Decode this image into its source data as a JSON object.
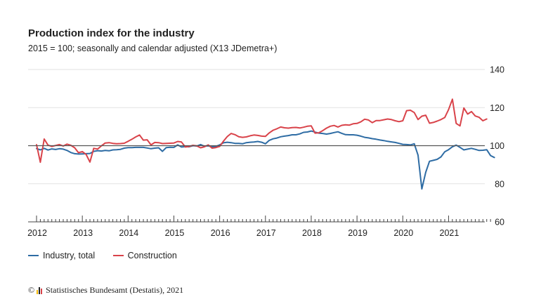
{
  "chart_data": {
    "type": "line",
    "title": "Production index for the industry",
    "subtitle": "2015 = 100; seasonally and calendar adjusted (X13 JDemetra+)",
    "x_start": "2012-01",
    "x_ticks": [
      "2012",
      "2013",
      "2014",
      "2015",
      "2016",
      "2017",
      "2018",
      "2019",
      "2020",
      "2021"
    ],
    "y_ticks": [
      "60",
      "80",
      "100",
      "120",
      "140"
    ],
    "ylim": [
      60,
      140
    ],
    "reference_line": 100,
    "grid": true,
    "legend_position": "bottom-left",
    "series": [
      {
        "name": "Industry, total",
        "color": "#2e6ca4",
        "values": [
          98.5,
          97.8,
          98.6,
          97.7,
          98.3,
          98.0,
          98.4,
          98.2,
          97.5,
          96.4,
          95.8,
          95.6,
          95.7,
          95.8,
          95.9,
          97.0,
          97.4,
          97.2,
          97.5,
          97.3,
          97.8,
          97.9,
          98.1,
          98.7,
          99.0,
          99.0,
          99.1,
          99.1,
          99.1,
          98.8,
          98.4,
          98.7,
          98.9,
          97.0,
          99.0,
          99.2,
          99.1,
          100.4,
          99.3,
          99.5,
          99.4,
          100.0,
          99.8,
          100.6,
          99.7,
          99.9,
          99.4,
          99.6,
          100.4,
          101.5,
          101.8,
          101.6,
          101.2,
          101.2,
          101.0,
          101.6,
          101.8,
          101.9,
          102.2,
          101.8,
          101.0,
          102.8,
          103.6,
          104.0,
          104.7,
          105.0,
          105.3,
          105.7,
          105.7,
          106.2,
          107.0,
          107.2,
          107.7,
          107.1,
          106.6,
          106.4,
          106.1,
          106.4,
          106.9,
          107.3,
          106.5,
          105.8,
          105.7,
          105.7,
          105.5,
          105.0,
          104.4,
          104.1,
          103.7,
          103.4,
          103.0,
          102.7,
          102.3,
          102.0,
          101.7,
          101.2,
          100.7,
          100.6,
          100.4,
          101.0,
          95.0,
          77.3,
          86.0,
          91.8,
          92.3,
          92.8,
          94.1,
          96.8,
          97.9,
          99.4,
          100.3,
          99.1,
          97.8,
          98.2,
          98.6,
          98.1,
          97.5,
          97.6,
          97.9,
          94.8,
          93.8
        ]
      },
      {
        "name": "Construction",
        "color": "#d9434a",
        "values": [
          100.5,
          91.3,
          103.5,
          100.3,
          99.6,
          100.1,
          100.6,
          99.8,
          100.8,
          100.2,
          98.9,
          96.3,
          96.9,
          95.4,
          91.4,
          98.6,
          98.2,
          99.9,
          101.4,
          101.6,
          101.2,
          101.0,
          101.1,
          101.3,
          102.3,
          103.4,
          104.6,
          105.6,
          102.9,
          103.1,
          100.4,
          101.7,
          101.6,
          101.1,
          101.2,
          101.3,
          101.4,
          102.2,
          101.9,
          99.3,
          99.6,
          100.2,
          99.9,
          98.9,
          99.4,
          100.4,
          98.7,
          99.0,
          99.6,
          102.4,
          104.8,
          106.4,
          105.8,
          104.7,
          104.4,
          104.6,
          105.2,
          105.6,
          105.4,
          105.0,
          104.9,
          106.7,
          108.1,
          108.9,
          109.8,
          109.4,
          109.2,
          109.5,
          109.6,
          109.3,
          109.7,
          110.2,
          110.4,
          106.6,
          106.8,
          107.9,
          109.2,
          110.2,
          110.6,
          109.8,
          110.7,
          111.0,
          110.8,
          111.5,
          111.7,
          112.5,
          113.9,
          113.5,
          112.1,
          113.2,
          113.2,
          113.6,
          114.0,
          113.7,
          113.1,
          112.6,
          113.1,
          118.4,
          118.6,
          117.4,
          113.7,
          115.5,
          116.0,
          111.8,
          112.2,
          112.9,
          113.7,
          114.8,
          118.9,
          124.4,
          111.7,
          110.4,
          119.8,
          116.6,
          117.9,
          115.6,
          114.9,
          113.1,
          114.0
        ]
      }
    ]
  },
  "source": {
    "text": "Statistisches Bundesamt (Destatis), 2021",
    "copyright_symbol": "©"
  }
}
